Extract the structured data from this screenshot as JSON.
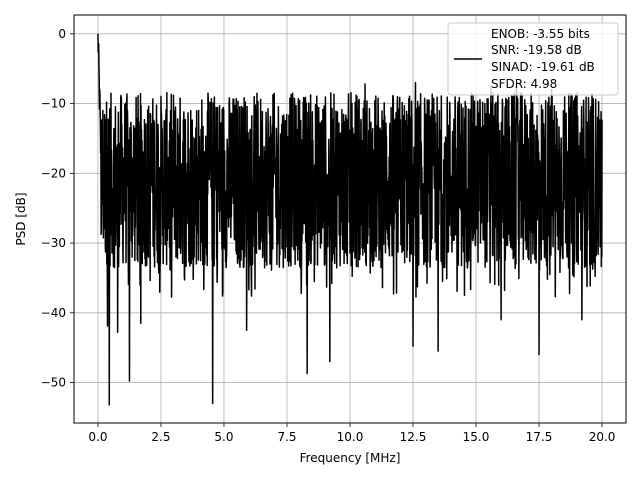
{
  "chart_data": {
    "type": "line",
    "xlabel": "Frequency [MHz]",
    "ylabel": "PSD [dB]",
    "xlim": [
      -0.95,
      20.95
    ],
    "ylim": [
      -55.8,
      2.7
    ],
    "x_ticks": [
      0.0,
      2.5,
      5.0,
      7.5,
      10.0,
      12.5,
      15.0,
      17.5,
      20.0
    ],
    "x_tick_labels": [
      "0.0",
      "2.5",
      "5.0",
      "7.5",
      "10.0",
      "12.5",
      "15.0",
      "17.5",
      "20.0"
    ],
    "y_ticks": [
      0,
      -10,
      -20,
      -30,
      -40,
      -50
    ],
    "y_tick_labels": [
      "0",
      "−10",
      "−20",
      "−30",
      "−40",
      "−50"
    ],
    "grid": true,
    "legend_position": "top-right",
    "series": [
      {
        "name": "ENOB: -3.55 bits\nSNR: -19.58 dB\nSINAD: -19.61 dB\nSFDR: 4.98",
        "legend_lines": [
          "ENOB: -3.55 bits",
          "SNR: -19.58 dB",
          "SINAD: -19.61 dB",
          "SFDR: 4.98"
        ],
        "color": "#000000",
        "x_range": [
          0.0,
          20.0
        ],
        "noise_floor_mean": -21,
        "noise_upper": -11,
        "noise_lower": -32,
        "peaks": [
          {
            "x": 0.0,
            "y": 0.0
          },
          {
            "x": 0.08,
            "y": -8.5
          },
          {
            "x": 0.2,
            "y": -11
          },
          {
            "x": 0.45,
            "y": -53.2
          },
          {
            "x": 0.38,
            "y": -41.9
          },
          {
            "x": 0.78,
            "y": -42.8
          },
          {
            "x": 1.25,
            "y": -49.8
          },
          {
            "x": 1.7,
            "y": -41.5
          },
          {
            "x": 4.55,
            "y": -53.0
          },
          {
            "x": 5.9,
            "y": -42.5
          },
          {
            "x": 8.3,
            "y": -48.7
          },
          {
            "x": 9.2,
            "y": -47.0
          },
          {
            "x": 12.5,
            "y": -44.8
          },
          {
            "x": 13.5,
            "y": -45.5
          },
          {
            "x": 16.0,
            "y": -41.0
          },
          {
            "x": 17.5,
            "y": -46.0
          },
          {
            "x": 18.0,
            "y": -8.0
          },
          {
            "x": 19.0,
            "y": -8.5
          },
          {
            "x": 19.2,
            "y": -41.0
          },
          {
            "x": 10.6,
            "y": -7.2
          },
          {
            "x": 12.6,
            "y": -7.0
          },
          {
            "x": 15.6,
            "y": -7.4
          },
          {
            "x": 16.6,
            "y": -7.6
          },
          {
            "x": 3.0,
            "y": -8.8
          },
          {
            "x": 6.2,
            "y": -9.0
          }
        ]
      }
    ]
  }
}
